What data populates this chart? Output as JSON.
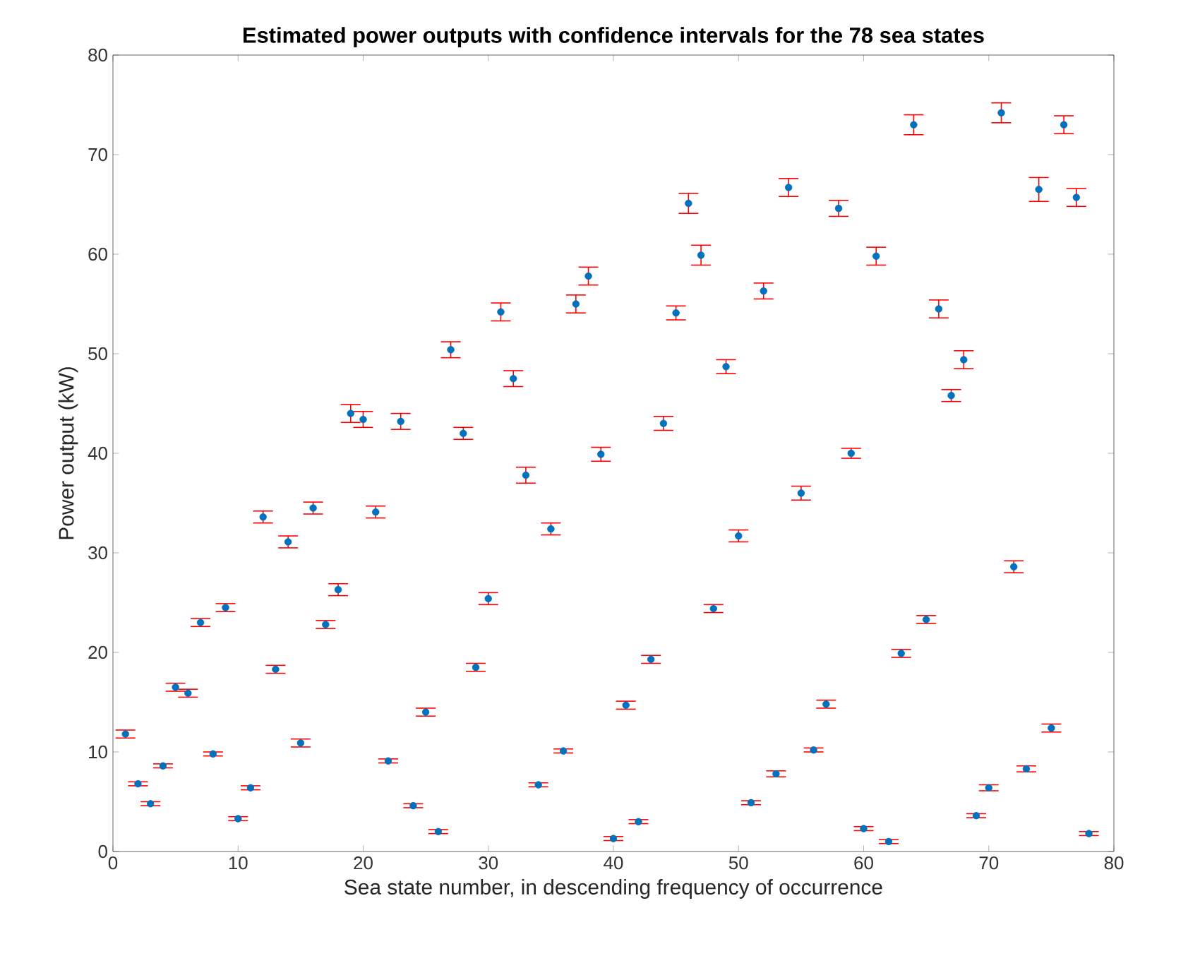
{
  "chart_data": {
    "type": "scatter",
    "title": "Estimated power outputs with confidence intervals for the 78 sea states",
    "xlabel": "Sea state number, in descending frequency of occurrence",
    "ylabel": "Power output (kW)",
    "x": [
      1,
      2,
      3,
      4,
      5,
      6,
      7,
      8,
      9,
      10,
      11,
      12,
      13,
      14,
      15,
      16,
      17,
      18,
      19,
      20,
      21,
      22,
      23,
      24,
      25,
      26,
      27,
      28,
      29,
      30,
      31,
      32,
      33,
      34,
      35,
      36,
      37,
      38,
      39,
      40,
      41,
      42,
      43,
      44,
      45,
      46,
      47,
      48,
      49,
      50,
      51,
      52,
      53,
      54,
      55,
      56,
      57,
      58,
      59,
      60,
      61,
      62,
      63,
      64,
      65,
      66,
      67,
      68,
      69,
      70,
      71,
      72,
      73,
      74,
      75,
      76,
      77,
      78
    ],
    "series": [
      {
        "color": "#0072bd",
        "values": [
          11.8,
          6.8,
          4.8,
          8.6,
          16.5,
          15.9,
          23.0,
          9.8,
          24.5,
          3.3,
          6.4,
          33.6,
          18.3,
          31.1,
          10.9,
          34.5,
          22.8,
          26.3,
          44.0,
          43.4,
          34.1,
          9.1,
          43.2,
          4.6,
          14.0,
          2.0,
          50.4,
          42.0,
          18.5,
          25.4,
          54.2,
          47.5,
          37.8,
          6.7,
          32.4,
          10.1,
          55.0,
          57.8,
          39.9,
          1.3,
          14.7,
          3.0,
          19.3,
          43.0,
          54.1,
          65.1,
          59.9,
          24.4,
          48.7,
          31.7,
          4.9,
          56.3,
          7.8,
          66.7,
          36.0,
          10.2,
          14.8,
          64.6,
          40.0,
          2.3,
          59.8,
          1.0,
          19.9,
          73.0,
          23.3,
          54.5,
          45.8,
          49.4,
          3.6,
          6.4,
          74.2,
          28.6,
          8.3,
          66.5,
          12.4,
          73.0,
          65.7,
          1.8
        ],
        "errors": [
          0.4,
          0.2,
          0.2,
          0.2,
          0.4,
          0.4,
          0.4,
          0.2,
          0.4,
          0.2,
          0.2,
          0.6,
          0.4,
          0.6,
          0.4,
          0.6,
          0.4,
          0.6,
          0.9,
          0.8,
          0.6,
          0.2,
          0.8,
          0.2,
          0.4,
          0.2,
          0.8,
          0.6,
          0.4,
          0.6,
          0.9,
          0.8,
          0.8,
          0.2,
          0.6,
          0.2,
          0.9,
          0.9,
          0.7,
          0.2,
          0.4,
          0.2,
          0.4,
          0.7,
          0.7,
          1.0,
          1.0,
          0.4,
          0.7,
          0.6,
          0.2,
          0.8,
          0.3,
          0.9,
          0.7,
          0.2,
          0.4,
          0.8,
          0.5,
          0.2,
          0.9,
          0.2,
          0.4,
          1.0,
          0.4,
          0.9,
          0.6,
          0.9,
          0.2,
          0.3,
          1.0,
          0.6,
          0.3,
          1.2,
          0.4,
          0.9,
          0.9,
          0.2
        ]
      }
    ],
    "xlim": [
      0,
      80
    ],
    "ylim": [
      0,
      80
    ],
    "xticks": [
      0,
      10,
      20,
      30,
      40,
      50,
      60,
      70,
      80
    ],
    "yticks": [
      0,
      10,
      20,
      30,
      40,
      50,
      60,
      70,
      80
    ],
    "marker": "circle"
  }
}
